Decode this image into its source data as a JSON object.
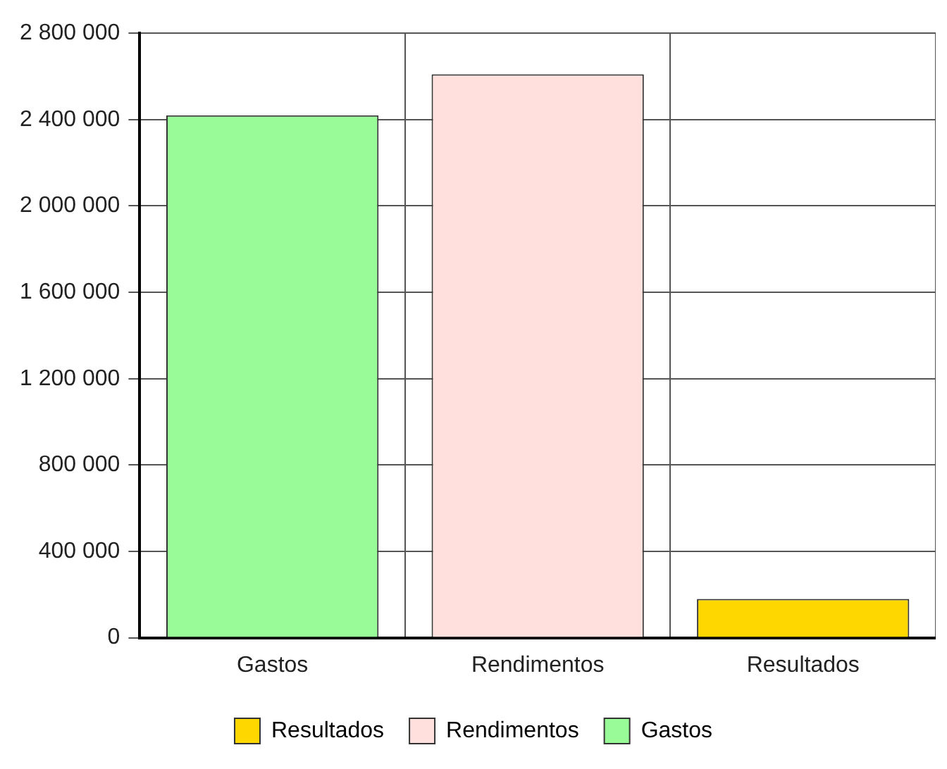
{
  "chart_data": {
    "type": "bar",
    "categories": [
      "Gastos",
      "Rendimentos",
      "Resultados"
    ],
    "series": [
      {
        "name": "Resultados",
        "color": "#ffd700",
        "values": [
          null,
          null,
          180000
        ]
      },
      {
        "name": "Rendimentos",
        "color": "#ffe0dd",
        "values": [
          null,
          2610000,
          null
        ]
      },
      {
        "name": "Gastos",
        "color": "#98fb98",
        "values": [
          2420000,
          null,
          null
        ]
      }
    ],
    "ylim": [
      0,
      2800000
    ],
    "yticks": [
      {
        "value": 0,
        "label": "0"
      },
      {
        "value": 400000,
        "label": "400 000"
      },
      {
        "value": 800000,
        "label": "800 000"
      },
      {
        "value": 1200000,
        "label": "1 200 000"
      },
      {
        "value": 1600000,
        "label": "1 600 000"
      },
      {
        "value": 2000000,
        "label": "2 000 000"
      },
      {
        "value": 2400000,
        "label": "2 400 000"
      },
      {
        "value": 2800000,
        "label": "2 800 000"
      }
    ],
    "grid": true,
    "legend": "bottom"
  }
}
